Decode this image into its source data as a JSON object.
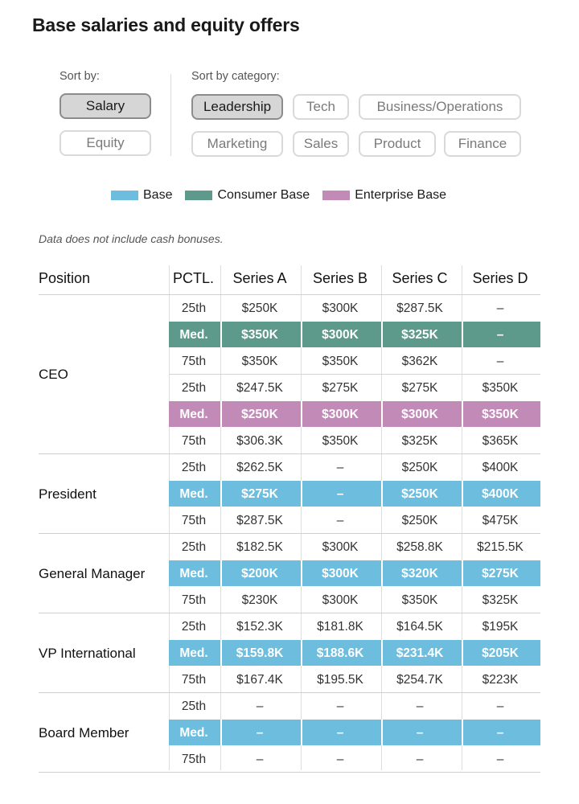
{
  "title": "Base salaries and equity offers",
  "controls": {
    "sort_by_label": "Sort by:",
    "sort_by_options": [
      "Salary",
      "Equity"
    ],
    "sort_by_selected": "Salary",
    "category_label": "Sort by category:",
    "categories": [
      "Leadership",
      "Tech",
      "Business/Operations",
      "Marketing",
      "Sales",
      "Product",
      "Finance"
    ],
    "category_selected": "Leadership"
  },
  "note": "Data does not include cash bonuses.",
  "colors": {
    "Base": "#6dbddf",
    "Consumer Base": "#5d9a8c",
    "Enterprise Base": "#c18ab7"
  },
  "chart_data": {
    "type": "table",
    "legend": [
      "Base",
      "Consumer Base",
      "Enterprise Base"
    ],
    "columns": [
      "Position",
      "PCTL.",
      "Series A",
      "Series B",
      "Series C",
      "Series D"
    ],
    "groups": [
      {
        "position": "CEO",
        "blocks": [
          {
            "type": "Consumer Base",
            "rows": [
              {
                "pctl": "25th",
                "values": [
                  "$250K",
                  "$300K",
                  "$287.5K",
                  "–"
                ]
              },
              {
                "pctl": "Med.",
                "values": [
                  "$350K",
                  "$300K",
                  "$325K",
                  "–"
                ]
              },
              {
                "pctl": "75th",
                "values": [
                  "$350K",
                  "$350K",
                  "$362K",
                  "–"
                ]
              }
            ]
          },
          {
            "type": "Enterprise Base",
            "rows": [
              {
                "pctl": "25th",
                "values": [
                  "$247.5K",
                  "$275K",
                  "$275K",
                  "$350K"
                ]
              },
              {
                "pctl": "Med.",
                "values": [
                  "$250K",
                  "$300K",
                  "$300K",
                  "$350K"
                ]
              },
              {
                "pctl": "75th",
                "values": [
                  "$306.3K",
                  "$350K",
                  "$325K",
                  "$365K"
                ]
              }
            ]
          }
        ]
      },
      {
        "position": "President",
        "blocks": [
          {
            "type": "Base",
            "rows": [
              {
                "pctl": "25th",
                "values": [
                  "$262.5K",
                  "–",
                  "$250K",
                  "$400K"
                ]
              },
              {
                "pctl": "Med.",
                "values": [
                  "$275K",
                  "–",
                  "$250K",
                  "$400K"
                ]
              },
              {
                "pctl": "75th",
                "values": [
                  "$287.5K",
                  "–",
                  "$250K",
                  "$475K"
                ]
              }
            ]
          }
        ]
      },
      {
        "position": "General Manager",
        "blocks": [
          {
            "type": "Base",
            "rows": [
              {
                "pctl": "25th",
                "values": [
                  "$182.5K",
                  "$300K",
                  "$258.8K",
                  "$215.5K"
                ]
              },
              {
                "pctl": "Med.",
                "values": [
                  "$200K",
                  "$300K",
                  "$320K",
                  "$275K"
                ]
              },
              {
                "pctl": "75th",
                "values": [
                  "$230K",
                  "$300K",
                  "$350K",
                  "$325K"
                ]
              }
            ]
          }
        ]
      },
      {
        "position": "VP International",
        "blocks": [
          {
            "type": "Base",
            "rows": [
              {
                "pctl": "25th",
                "values": [
                  "$152.3K",
                  "$181.8K",
                  "$164.5K",
                  "$195K"
                ]
              },
              {
                "pctl": "Med.",
                "values": [
                  "$159.8K",
                  "$188.6K",
                  "$231.4K",
                  "$205K"
                ]
              },
              {
                "pctl": "75th",
                "values": [
                  "$167.4K",
                  "$195.5K",
                  "$254.7K",
                  "$223K"
                ]
              }
            ]
          }
        ]
      },
      {
        "position": "Board Member",
        "blocks": [
          {
            "type": "Base",
            "rows": [
              {
                "pctl": "25th",
                "values": [
                  "–",
                  "–",
                  "–",
                  "–"
                ]
              },
              {
                "pctl": "Med.",
                "values": [
                  "–",
                  "–",
                  "–",
                  "–"
                ]
              },
              {
                "pctl": "75th",
                "values": [
                  "–",
                  "–",
                  "–",
                  "–"
                ]
              }
            ]
          }
        ]
      }
    ]
  }
}
